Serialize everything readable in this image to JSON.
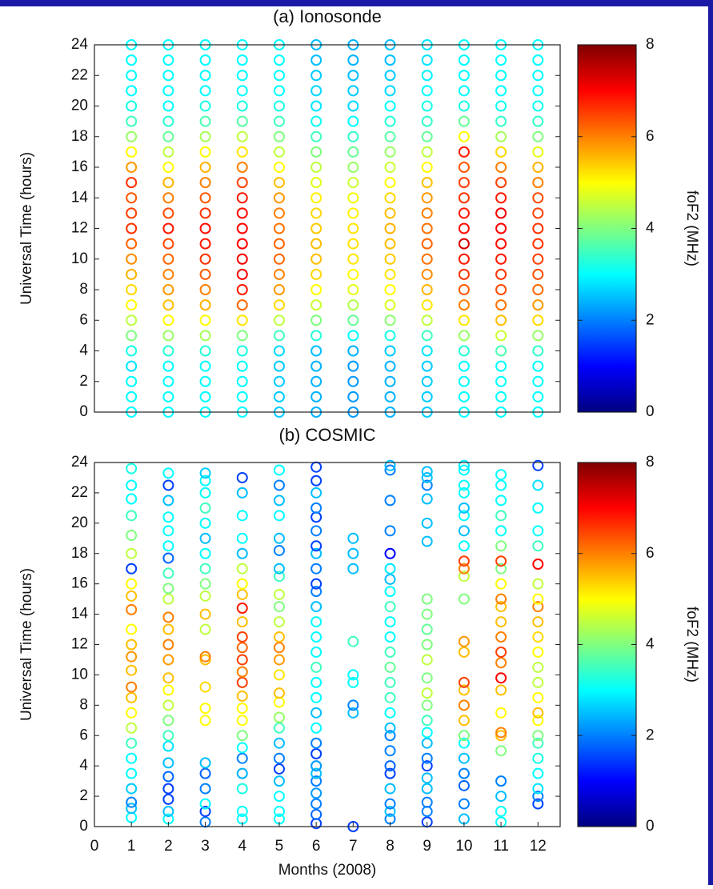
{
  "chart_data": [
    {
      "type": "scatter",
      "title": "(a) Ionosonde",
      "ylabel": "Universal Time (hours)",
      "colorbar_label": "foF2 (MHz)",
      "colormap": "jet",
      "xlim": [
        0,
        12.6
      ],
      "ylim": [
        0,
        24
      ],
      "yticks": [
        0,
        2,
        4,
        6,
        8,
        10,
        12,
        14,
        16,
        18,
        20,
        22,
        24
      ],
      "clim": [
        0,
        8
      ],
      "cticks": [
        0,
        2,
        4,
        6,
        8
      ],
      "y": [
        0,
        1,
        2,
        3,
        4,
        5,
        6,
        7,
        8,
        9,
        10,
        11,
        12,
        13,
        14,
        15,
        16,
        17,
        18,
        19,
        20,
        21,
        22,
        23,
        24
      ],
      "series": [
        {
          "x": 1,
          "values": [
            3,
            3,
            3,
            2.8,
            3.2,
            4,
            4.5,
            5,
            5.3,
            5.6,
            5.9,
            6.2,
            6.6,
            6.5,
            6.3,
            6.6,
            5.8,
            5,
            4.2,
            3.5,
            3.2,
            3,
            3,
            3,
            3
          ]
        },
        {
          "x": 2,
          "values": [
            3,
            3,
            3,
            3,
            3.3,
            4.2,
            5,
            5.5,
            5.8,
            6,
            6.2,
            6.4,
            6.8,
            6.4,
            6,
            5.6,
            5,
            4.5,
            3.8,
            3.3,
            3,
            3,
            3,
            3,
            3
          ]
        },
        {
          "x": 3,
          "values": [
            3,
            3,
            3,
            3,
            3.3,
            4.3,
            5,
            5.6,
            6,
            6.3,
            6.6,
            6.8,
            6.9,
            6.6,
            6.3,
            6,
            5.6,
            5,
            4.3,
            3.6,
            3.2,
            3,
            3,
            3,
            3
          ]
        },
        {
          "x": 4,
          "values": [
            3,
            3,
            3,
            3,
            3.2,
            4,
            5.2,
            6.2,
            6.8,
            7,
            7.1,
            7,
            7,
            6.9,
            6.8,
            6.5,
            6,
            5.2,
            4.5,
            3.7,
            3.2,
            3,
            3,
            3,
            3
          ]
        },
        {
          "x": 5,
          "values": [
            2.6,
            2.6,
            2.6,
            2.6,
            2.7,
            3.5,
            4.5,
            5.3,
            5.8,
            6,
            6.2,
            6.2,
            6.1,
            6,
            5.8,
            5.5,
            5,
            4.5,
            4,
            3.5,
            3.2,
            3,
            3,
            3,
            3
          ]
        },
        {
          "x": 6,
          "values": [
            2.4,
            2.4,
            2.4,
            2.4,
            2.5,
            3.3,
            4,
            4.6,
            5,
            5.3,
            5.5,
            5.5,
            5.4,
            5.3,
            5.1,
            4.8,
            4.5,
            4,
            3.5,
            3.1,
            2.8,
            2.7,
            2.6,
            2.5,
            2.5
          ]
        },
        {
          "x": 7,
          "values": [
            2.2,
            2.2,
            2.2,
            2.2,
            2.4,
            3,
            3.8,
            4.4,
            4.8,
            5,
            5.2,
            5.2,
            5.2,
            5.1,
            4.9,
            4.6,
            4.2,
            3.8,
            3.4,
            3,
            2.7,
            2.6,
            2.5,
            2.4,
            2.4
          ]
        },
        {
          "x": 8,
          "values": [
            2.4,
            2.4,
            2.4,
            2.4,
            2.6,
            3.2,
            4.1,
            4.7,
            5,
            5.2,
            5.4,
            5.5,
            5.6,
            5.5,
            5.3,
            5,
            4.6,
            4.2,
            3.7,
            3.3,
            3,
            2.7,
            2.6,
            2.5,
            2.5
          ]
        },
        {
          "x": 9,
          "values": [
            2.6,
            2.6,
            2.6,
            2.6,
            2.8,
            3.5,
            4.5,
            5.2,
            5.6,
            5.9,
            6.1,
            6.2,
            6.1,
            6,
            5.8,
            5.5,
            5,
            4.5,
            3.8,
            3.4,
            3.2,
            3,
            2.9,
            2.8,
            2.8
          ]
        },
        {
          "x": 10,
          "values": [
            3,
            3,
            3,
            3,
            3.3,
            4.2,
            5.2,
            6,
            6.3,
            6.6,
            6.8,
            7.3,
            6.9,
            6.8,
            6.6,
            6.5,
            6.3,
            6.8,
            5,
            3.8,
            3.2,
            3,
            3,
            3,
            3
          ]
        },
        {
          "x": 11,
          "values": [
            3,
            3,
            3,
            3,
            3.6,
            4.6,
            5.5,
            6.1,
            6.4,
            6.6,
            6.8,
            6.9,
            7,
            7.1,
            6.8,
            6.5,
            6,
            5.3,
            4.3,
            3.4,
            3.1,
            3,
            3,
            3,
            3
          ]
        },
        {
          "x": 12,
          "values": [
            3,
            3,
            3,
            3,
            3.4,
            4.2,
            5.3,
            5.8,
            6.2,
            6.4,
            6.5,
            6.6,
            6.6,
            6.5,
            6.4,
            6,
            5.6,
            4.8,
            4,
            3.4,
            3.1,
            3,
            3,
            3,
            3
          ]
        }
      ]
    },
    {
      "type": "scatter",
      "title": "(b) COSMIC",
      "ylabel": "Universal Time (hours)",
      "xlabel": "Months (2008)",
      "colorbar_label": "foF2 (MHz)",
      "colormap": "jet",
      "xlim": [
        0,
        12.6
      ],
      "xticks": [
        0,
        1,
        2,
        3,
        4,
        5,
        6,
        7,
        8,
        9,
        10,
        11,
        12
      ],
      "ylim": [
        0,
        24
      ],
      "yticks": [
        0,
        2,
        4,
        6,
        8,
        10,
        12,
        14,
        16,
        18,
        20,
        22,
        24
      ],
      "clim": [
        0,
        8
      ],
      "cticks": [
        0,
        2,
        4,
        6,
        8
      ],
      "series": [
        {
          "x": 1,
          "y": [
            0.6,
            1.2,
            1.6,
            2.5,
            3.5,
            4.5,
            5.5,
            6.5,
            7.5,
            8.5,
            9.2,
            10.3,
            11.2,
            12,
            13,
            14.3,
            15.2,
            16,
            17,
            18,
            19.2,
            20.5,
            21.6,
            22.5,
            23.6
          ],
          "values": [
            3,
            2.5,
            2,
            2.6,
            3,
            3,
            3.5,
            4.5,
            5,
            5.5,
            6,
            5.5,
            5.8,
            5.5,
            5,
            6,
            5.5,
            5,
            1.5,
            4.5,
            4,
            3.5,
            3,
            3,
            3.2
          ]
        },
        {
          "x": 2,
          "y": [
            0.5,
            1,
            1.8,
            2.5,
            3.3,
            4.2,
            5.3,
            6,
            7,
            8,
            9,
            9.8,
            11,
            12,
            13,
            13.8,
            15,
            15.7,
            16.7,
            17.7,
            18.5,
            19.5,
            20.4,
            21.5,
            22.5,
            23.3
          ],
          "values": [
            3,
            2.5,
            1.5,
            1.5,
            1.8,
            2.5,
            2.8,
            3.5,
            4,
            4.5,
            5,
            5.5,
            5.8,
            6,
            5.5,
            6,
            4.5,
            4,
            3.5,
            1.8,
            3,
            3,
            3,
            2.5,
            1.5,
            3
          ]
        },
        {
          "x": 3,
          "y": [
            0.3,
            1,
            1.5,
            2.5,
            3.5,
            4.2,
            7,
            7.8,
            9.2,
            11,
            11.2,
            13,
            14,
            15.2,
            16,
            17,
            18,
            19,
            20,
            21,
            22,
            22.8,
            23.3
          ],
          "values": [
            2,
            1.5,
            3,
            2,
            1.8,
            2.5,
            5,
            5,
            5.3,
            5.5,
            6,
            4.5,
            5.5,
            4.5,
            4,
            3.5,
            3,
            2.5,
            3,
            3.5,
            3,
            3,
            2.6
          ]
        },
        {
          "x": 4,
          "y": [
            0.5,
            1,
            2.5,
            3.5,
            4.5,
            5.2,
            6,
            7,
            7.8,
            8.6,
            9.5,
            10.2,
            11,
            11.8,
            12.5,
            13.5,
            14.4,
            15.3,
            16,
            17,
            18,
            19,
            20.5,
            22,
            23
          ],
          "values": [
            3,
            3,
            3.2,
            2.4,
            2,
            3,
            4,
            5,
            5,
            5.5,
            6.5,
            6,
            6.5,
            6.2,
            6.5,
            5.5,
            6.8,
            5.5,
            5,
            4.5,
            2.5,
            3,
            3,
            2.5,
            1.5
          ]
        },
        {
          "x": 5,
          "y": [
            0.5,
            1,
            2,
            3,
            3.8,
            4.5,
            5.5,
            6.5,
            7.2,
            8.2,
            8.8,
            10,
            11,
            11.8,
            12.5,
            13.5,
            14.5,
            15.3,
            16.5,
            17,
            18.2,
            19,
            20.5,
            21.5,
            22.5,
            23.5
          ],
          "values": [
            3,
            3,
            3,
            2.5,
            1.5,
            2,
            2.5,
            3.5,
            4.2,
            5,
            5.5,
            5.2,
            5.8,
            6,
            5.5,
            4.5,
            4,
            4.5,
            3.5,
            2.5,
            2,
            2.5,
            3,
            2.5,
            2,
            3
          ]
        },
        {
          "x": 6,
          "y": [
            0.2,
            0.8,
            1.5,
            2.2,
            3,
            3.5,
            4,
            4.8,
            5.5,
            6.5,
            7.5,
            8.5,
            9.5,
            10.5,
            11.5,
            12.5,
            13.5,
            14.5,
            15.5,
            16,
            17,
            18,
            18.5,
            19.5,
            20.4,
            21,
            22,
            22.8,
            23.7
          ],
          "values": [
            1.5,
            1.8,
            2,
            2.2,
            2,
            2.5,
            2.2,
            1.5,
            2,
            3,
            2.5,
            3,
            3,
            3.5,
            3,
            3,
            3,
            2.5,
            2,
            1.5,
            2,
            2.5,
            1.5,
            2,
            1.5,
            2,
            2.5,
            1.5,
            1.5
          ]
        },
        {
          "x": 7,
          "y": [
            0,
            7.5,
            8,
            9.5,
            10,
            12.2,
            17,
            18,
            19
          ],
          "values": [
            1.5,
            2.5,
            2,
            3,
            3,
            3.5,
            2.5,
            2.5,
            2.5
          ]
        },
        {
          "x": 8,
          "y": [
            0.5,
            1,
            1.5,
            2.5,
            3.5,
            4,
            5,
            6,
            6.5,
            7.5,
            8.5,
            9.5,
            10.5,
            11.5,
            12.5,
            13.5,
            14.5,
            15.5,
            16.3,
            17,
            18,
            19.5,
            21.5,
            23.5,
            23.8
          ],
          "values": [
            2,
            2.5,
            2,
            2.5,
            1.5,
            1.8,
            2,
            2,
            2.5,
            3,
            3.5,
            3.5,
            3.8,
            3.5,
            3,
            3,
            3.5,
            3,
            2.5,
            2.8,
            1,
            2,
            2,
            2,
            2.5
          ]
        },
        {
          "x": 9,
          "y": [
            0.3,
            1,
            1.6,
            2.5,
            3.2,
            4,
            4.5,
            5.5,
            6.2,
            7,
            8,
            8.8,
            9.8,
            11,
            12,
            13,
            14,
            15,
            18.8,
            20,
            21.6,
            22.5,
            23,
            23.4
          ],
          "values": [
            1.5,
            2,
            2,
            2.5,
            2.5,
            1.5,
            2,
            2.5,
            3,
            3.5,
            4,
            4.5,
            4,
            4.5,
            4,
            3.8,
            4,
            4,
            2.5,
            2.5,
            2.5,
            2,
            2.5,
            2.5
          ]
        },
        {
          "x": 10,
          "y": [
            0.5,
            1.5,
            2.7,
            3.5,
            4.5,
            5.5,
            6,
            7,
            8,
            9,
            9.5,
            11.5,
            12.2,
            15,
            16.5,
            17,
            17.5,
            18.5,
            19.5,
            20.5,
            21,
            22,
            22.5,
            23.5,
            23.8
          ],
          "values": [
            2.5,
            2,
            1.8,
            2,
            2.5,
            3,
            4,
            5.5,
            6,
            5.5,
            6.5,
            5.5,
            5.8,
            4,
            4.5,
            6,
            6.5,
            3,
            2.5,
            3,
            2.5,
            3,
            3,
            3,
            2.8
          ]
        },
        {
          "x": 11,
          "y": [
            0.3,
            1,
            2,
            3,
            5,
            6,
            6.2,
            7.5,
            9,
            9.8,
            10.8,
            11.5,
            12.5,
            13.5,
            14.5,
            15,
            16,
            17,
            17.5,
            18.5,
            19.5,
            20.5,
            21.5,
            22.5,
            23.2
          ],
          "values": [
            3,
            3,
            2.5,
            2,
            4,
            5.5,
            6,
            5,
            5.5,
            7,
            6,
            6.5,
            6,
            5.5,
            5.5,
            6,
            5,
            4,
            6.5,
            4,
            3,
            3.5,
            3,
            3,
            3
          ]
        },
        {
          "x": 12,
          "y": [
            1.5,
            2,
            2.5,
            3.5,
            4.5,
            5.5,
            6,
            7,
            7.5,
            8.5,
            9.5,
            10.5,
            11.5,
            12.5,
            13.5,
            14.5,
            15,
            16,
            17.3,
            18.5,
            19.5,
            21,
            22.5,
            23.8
          ],
          "values": [
            1.5,
            2,
            2.8,
            3,
            3.2,
            3.5,
            4,
            5,
            5.5,
            5,
            4.5,
            4.5,
            5,
            5.3,
            5.5,
            6,
            5,
            4.5,
            7,
            3.5,
            3,
            3,
            2.8,
            1.5
          ]
        }
      ]
    }
  ]
}
